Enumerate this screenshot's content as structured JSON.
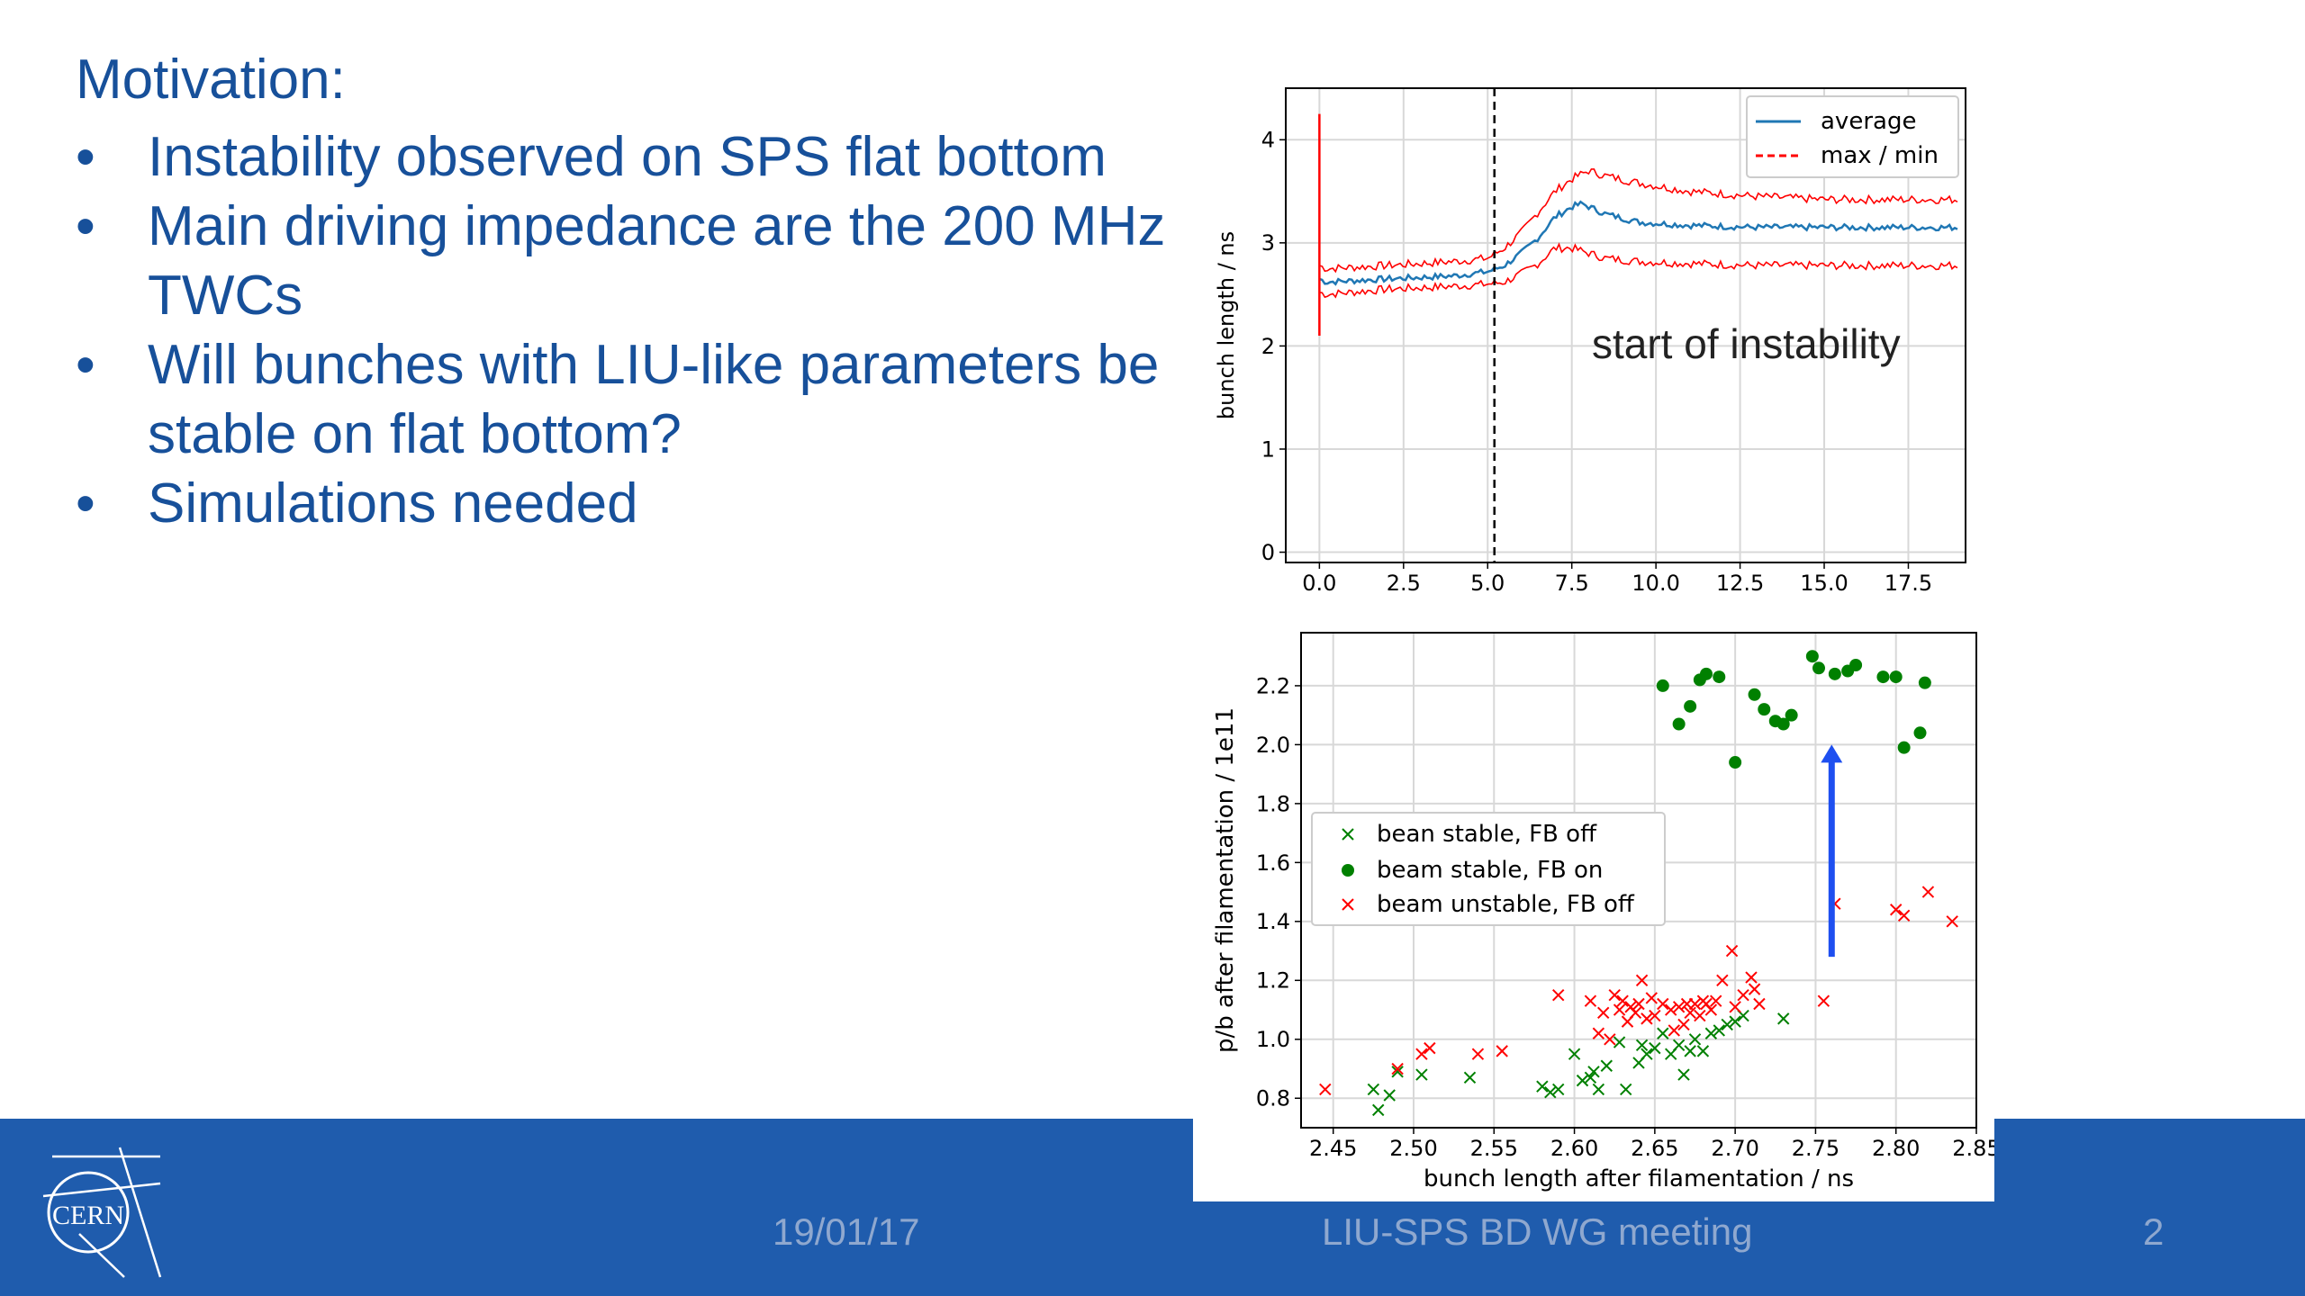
{
  "slide": {
    "heading": "Motivation:",
    "bullets": [
      "Instability observed on SPS flat bottom",
      "Main driving impedance are the 200 MHz TWCs",
      "Will bunches with LIU-like parameters be stable on flat bottom?",
      "Simulations needed"
    ]
  },
  "footer": {
    "date": "19/01/17",
    "meeting": "LIU-SPS BD WG meeting",
    "page": "2",
    "logo_text": "CERN",
    "colors": {
      "bar": "#1f5cad",
      "text": "#8fa8cf"
    }
  },
  "chart_data": [
    {
      "type": "line",
      "xlabel": "",
      "ylabel": "bunch length / ns",
      "xlim": [
        -1,
        19.2
      ],
      "ylim": [
        -0.1,
        4.5
      ],
      "xticks": [
        "0.0",
        "2.5",
        "5.0",
        "7.5",
        "10.0",
        "12.5",
        "15.0",
        "17.5"
      ],
      "yticks": [
        "0",
        "1",
        "2",
        "3",
        "4"
      ],
      "grid": true,
      "legend_position": "top-right",
      "annotation": "start of instability",
      "vline_x": 5.2,
      "series": [
        {
          "name": "average",
          "color": "#1f77b4",
          "x": [
            0,
            0.2,
            2,
            4,
            5,
            5.5,
            6,
            6.5,
            7,
            7.5,
            7.8,
            8.5,
            9.5,
            11,
            13,
            15,
            17,
            19
          ],
          "y": [
            2.65,
            2.62,
            2.65,
            2.68,
            2.72,
            2.78,
            2.9,
            3.05,
            3.25,
            3.35,
            3.38,
            3.28,
            3.2,
            3.17,
            3.15,
            3.15,
            3.15,
            3.15
          ]
        },
        {
          "name": "max / min",
          "color": "#ff0000",
          "x": [
            0,
            0.2,
            2,
            4,
            5,
            5.5,
            6,
            6.5,
            7,
            7.5,
            8,
            8.5,
            9.5,
            11,
            13,
            15,
            17,
            19
          ],
          "y": [
            2.78,
            2.75,
            2.78,
            2.82,
            2.85,
            2.95,
            3.1,
            3.3,
            3.5,
            3.62,
            3.7,
            3.65,
            3.58,
            3.5,
            3.45,
            3.42,
            3.42,
            3.42
          ]
        },
        {
          "name": "",
          "color": "#ff0000",
          "x": [
            0,
            0.2,
            2,
            4,
            5,
            5.5,
            6,
            6.5,
            7,
            7.5,
            8,
            8.5,
            9.5,
            11,
            13,
            15,
            17,
            19
          ],
          "y": [
            2.52,
            2.5,
            2.55,
            2.58,
            2.6,
            2.62,
            2.7,
            2.8,
            2.95,
            2.95,
            2.9,
            2.85,
            2.82,
            2.8,
            2.78,
            2.78,
            2.78,
            2.78
          ]
        }
      ]
    },
    {
      "type": "scatter",
      "xlabel": "bunch length after filamentation / ns",
      "ylabel": "p/b after filamentation / 1e11",
      "xlim": [
        2.43,
        2.85
      ],
      "ylim": [
        0.7,
        2.38
      ],
      "xticks": [
        "2.45",
        "2.50",
        "2.55",
        "2.60",
        "2.65",
        "2.70",
        "2.75",
        "2.80",
        "2.85"
      ],
      "yticks": [
        "0.8",
        "1.0",
        "1.2",
        "1.4",
        "1.6",
        "1.8",
        "2.0",
        "2.2"
      ],
      "grid": true,
      "legend_position": "center-left",
      "arrow": {
        "x": 2.76,
        "y_from": 1.28,
        "y_to": 2.0,
        "color": "#1e4ff0"
      },
      "series": [
        {
          "name": "bean stable, FB off",
          "marker": "x",
          "color": "#008000",
          "points": [
            [
              2.475,
              0.83
            ],
            [
              2.478,
              0.76
            ],
            [
              2.485,
              0.81
            ],
            [
              2.49,
              0.89
            ],
            [
              2.505,
              0.88
            ],
            [
              2.535,
              0.87
            ],
            [
              2.58,
              0.84
            ],
            [
              2.585,
              0.82
            ],
            [
              2.59,
              0.83
            ],
            [
              2.6,
              0.95
            ],
            [
              2.605,
              0.86
            ],
            [
              2.61,
              0.87
            ],
            [
              2.612,
              0.89
            ],
            [
              2.615,
              0.83
            ],
            [
              2.62,
              0.91
            ],
            [
              2.628,
              0.99
            ],
            [
              2.632,
              0.83
            ],
            [
              2.64,
              0.92
            ],
            [
              2.642,
              0.98
            ],
            [
              2.645,
              0.95
            ],
            [
              2.65,
              0.97
            ],
            [
              2.655,
              1.02
            ],
            [
              2.66,
              0.95
            ],
            [
              2.665,
              0.98
            ],
            [
              2.668,
              0.88
            ],
            [
              2.672,
              0.96
            ],
            [
              2.675,
              1.0
            ],
            [
              2.68,
              0.96
            ],
            [
              2.685,
              1.02
            ],
            [
              2.69,
              1.03
            ],
            [
              2.695,
              1.05
            ],
            [
              2.7,
              1.06
            ],
            [
              2.705,
              1.08
            ],
            [
              2.73,
              1.07
            ]
          ]
        },
        {
          "name": "beam stable, FB on",
          "marker": "o",
          "color": "#008000",
          "points": [
            [
              2.655,
              2.2
            ],
            [
              2.665,
              2.07
            ],
            [
              2.672,
              2.13
            ],
            [
              2.678,
              2.22
            ],
            [
              2.682,
              2.24
            ],
            [
              2.69,
              2.23
            ],
            [
              2.7,
              1.94
            ],
            [
              2.712,
              2.17
            ],
            [
              2.718,
              2.12
            ],
            [
              2.725,
              2.08
            ],
            [
              2.73,
              2.07
            ],
            [
              2.735,
              2.1
            ],
            [
              2.748,
              2.3
            ],
            [
              2.752,
              2.26
            ],
            [
              2.762,
              2.24
            ],
            [
              2.77,
              2.25
            ],
            [
              2.775,
              2.27
            ],
            [
              2.792,
              2.23
            ],
            [
              2.8,
              2.23
            ],
            [
              2.805,
              1.99
            ],
            [
              2.815,
              2.04
            ],
            [
              2.818,
              2.21
            ]
          ]
        },
        {
          "name": "beam unstable, FB off",
          "marker": "x",
          "color": "#ff0000",
          "points": [
            [
              2.445,
              0.83
            ],
            [
              2.49,
              0.9
            ],
            [
              2.505,
              0.95
            ],
            [
              2.51,
              0.97
            ],
            [
              2.54,
              0.95
            ],
            [
              2.555,
              0.96
            ],
            [
              2.59,
              1.15
            ],
            [
              2.61,
              1.13
            ],
            [
              2.615,
              1.02
            ],
            [
              2.618,
              1.09
            ],
            [
              2.622,
              1.0
            ],
            [
              2.625,
              1.15
            ],
            [
              2.628,
              1.1
            ],
            [
              2.63,
              1.13
            ],
            [
              2.633,
              1.06
            ],
            [
              2.635,
              1.11
            ],
            [
              2.638,
              1.09
            ],
            [
              2.64,
              1.12
            ],
            [
              2.642,
              1.2
            ],
            [
              2.645,
              1.07
            ],
            [
              2.648,
              1.14
            ],
            [
              2.65,
              1.08
            ],
            [
              2.655,
              1.12
            ],
            [
              2.66,
              1.1
            ],
            [
              2.662,
              1.03
            ],
            [
              2.665,
              1.11
            ],
            [
              2.668,
              1.05
            ],
            [
              2.67,
              1.12
            ],
            [
              2.672,
              1.09
            ],
            [
              2.675,
              1.12
            ],
            [
              2.678,
              1.08
            ],
            [
              2.68,
              1.13
            ],
            [
              2.682,
              1.12
            ],
            [
              2.685,
              1.1
            ],
            [
              2.688,
              1.13
            ],
            [
              2.692,
              1.2
            ],
            [
              2.698,
              1.3
            ],
            [
              2.7,
              1.11
            ],
            [
              2.705,
              1.15
            ],
            [
              2.71,
              1.21
            ],
            [
              2.712,
              1.17
            ],
            [
              2.715,
              1.12
            ],
            [
              2.755,
              1.13
            ],
            [
              2.762,
              1.46
            ],
            [
              2.8,
              1.44
            ],
            [
              2.805,
              1.42
            ],
            [
              2.82,
              1.5
            ],
            [
              2.835,
              1.4
            ]
          ]
        }
      ]
    }
  ]
}
